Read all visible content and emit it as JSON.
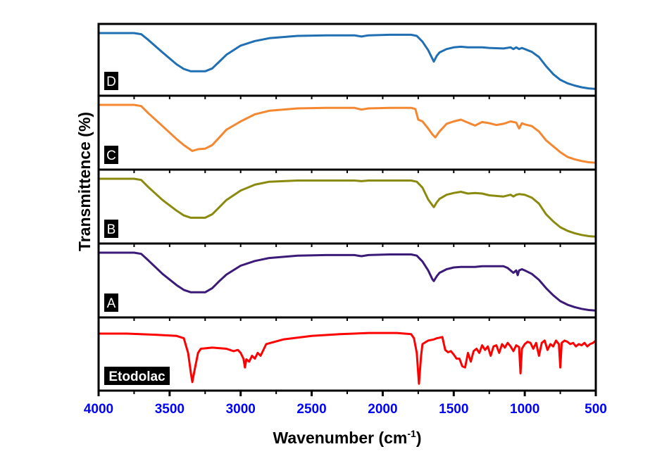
{
  "chart_data": {
    "type": "line",
    "title": "",
    "xlabel": "Wavenumber (cm",
    "xlabel_sup": "-1",
    "xlabel_close": ")",
    "ylabel": "Transmittence (%)",
    "xlim": [
      4000,
      500
    ],
    "x_ticks": [
      "4000",
      "3500",
      "3000",
      "2500",
      "2000",
      "1500",
      "1000",
      "500"
    ],
    "x_tick_values": [
      4000,
      3500,
      3000,
      2500,
      2000,
      1500,
      1000,
      500
    ],
    "x_minor_tick_values": [
      3750,
      3250,
      2750,
      2250,
      1750,
      1250,
      750
    ],
    "ylim": [
      0,
      100
    ],
    "grid": false,
    "legend": "none",
    "series": [
      {
        "name": "D",
        "color": "#1f6fb2",
        "points": [
          [
            4000,
            100
          ],
          [
            3750,
            100
          ],
          [
            3700,
            98
          ],
          [
            3650,
            88
          ],
          [
            3550,
            66
          ],
          [
            3450,
            45
          ],
          [
            3400,
            37
          ],
          [
            3350,
            33
          ],
          [
            3250,
            33
          ],
          [
            3200,
            38
          ],
          [
            3150,
            50
          ],
          [
            3100,
            62
          ],
          [
            3000,
            78
          ],
          [
            2900,
            86
          ],
          [
            2800,
            91
          ],
          [
            2600,
            95
          ],
          [
            2400,
            96
          ],
          [
            2200,
            96
          ],
          [
            2150,
            94
          ],
          [
            2100,
            96
          ],
          [
            1950,
            97
          ],
          [
            1800,
            97
          ],
          [
            1760,
            95
          ],
          [
            1720,
            85
          ],
          [
            1680,
            70
          ],
          [
            1650,
            55
          ],
          [
            1640,
            50
          ],
          [
            1620,
            60
          ],
          [
            1600,
            66
          ],
          [
            1550,
            72
          ],
          [
            1500,
            75
          ],
          [
            1450,
            76
          ],
          [
            1400,
            75
          ],
          [
            1350,
            75
          ],
          [
            1300,
            75
          ],
          [
            1250,
            74
          ],
          [
            1150,
            73
          ],
          [
            1100,
            75
          ],
          [
            1080,
            72
          ],
          [
            1060,
            75
          ],
          [
            1040,
            72
          ],
          [
            1020,
            74
          ],
          [
            1000,
            72
          ],
          [
            950,
            67
          ],
          [
            900,
            58
          ],
          [
            850,
            42
          ],
          [
            800,
            28
          ],
          [
            750,
            18
          ],
          [
            700,
            12
          ],
          [
            650,
            8
          ],
          [
            600,
            5
          ],
          [
            550,
            3
          ],
          [
            500,
            2
          ]
        ]
      },
      {
        "name": "C",
        "color": "#f4872f",
        "points": [
          [
            4000,
            100
          ],
          [
            3750,
            100
          ],
          [
            3700,
            98
          ],
          [
            3650,
            86
          ],
          [
            3550,
            64
          ],
          [
            3450,
            42
          ],
          [
            3400,
            32
          ],
          [
            3340,
            22
          ],
          [
            3300,
            25
          ],
          [
            3250,
            26
          ],
          [
            3200,
            32
          ],
          [
            3150,
            45
          ],
          [
            3100,
            58
          ],
          [
            3000,
            72
          ],
          [
            2900,
            84
          ],
          [
            2800,
            90
          ],
          [
            2600,
            94
          ],
          [
            2400,
            95
          ],
          [
            2200,
            95
          ],
          [
            2150,
            92
          ],
          [
            2100,
            94
          ],
          [
            1950,
            95
          ],
          [
            1800,
            95
          ],
          [
            1770,
            93
          ],
          [
            1750,
            75
          ],
          [
            1720,
            72
          ],
          [
            1680,
            60
          ],
          [
            1650,
            50
          ],
          [
            1630,
            45
          ],
          [
            1600,
            55
          ],
          [
            1550,
            68
          ],
          [
            1500,
            72
          ],
          [
            1450,
            75
          ],
          [
            1400,
            70
          ],
          [
            1350,
            65
          ],
          [
            1300,
            71
          ],
          [
            1250,
            69
          ],
          [
            1200,
            66
          ],
          [
            1150,
            68
          ],
          [
            1100,
            72
          ],
          [
            1060,
            70
          ],
          [
            1040,
            60
          ],
          [
            1020,
            69
          ],
          [
            1000,
            67
          ],
          [
            950,
            64
          ],
          [
            900,
            55
          ],
          [
            850,
            40
          ],
          [
            800,
            30
          ],
          [
            760,
            22
          ],
          [
            750,
            20
          ],
          [
            700,
            12
          ],
          [
            650,
            8
          ],
          [
            600,
            5
          ],
          [
            550,
            3
          ],
          [
            500,
            2
          ]
        ]
      },
      {
        "name": "B",
        "color": "#8a8a0e",
        "points": [
          [
            4000,
            100
          ],
          [
            3750,
            100
          ],
          [
            3700,
            98
          ],
          [
            3650,
            86
          ],
          [
            3550,
            64
          ],
          [
            3450,
            46
          ],
          [
            3400,
            38
          ],
          [
            3350,
            34
          ],
          [
            3250,
            34
          ],
          [
            3200,
            40
          ],
          [
            3150,
            52
          ],
          [
            3100,
            64
          ],
          [
            3000,
            80
          ],
          [
            2900,
            90
          ],
          [
            2800,
            95
          ],
          [
            2600,
            97
          ],
          [
            2400,
            97
          ],
          [
            2200,
            97
          ],
          [
            2150,
            96
          ],
          [
            2100,
            97
          ],
          [
            1950,
            97
          ],
          [
            1800,
            97
          ],
          [
            1760,
            95
          ],
          [
            1720,
            85
          ],
          [
            1680,
            65
          ],
          [
            1650,
            55
          ],
          [
            1640,
            52
          ],
          [
            1620,
            60
          ],
          [
            1600,
            66
          ],
          [
            1550,
            73
          ],
          [
            1500,
            76
          ],
          [
            1450,
            78
          ],
          [
            1400,
            75
          ],
          [
            1350,
            76
          ],
          [
            1300,
            75
          ],
          [
            1250,
            72
          ],
          [
            1150,
            70
          ],
          [
            1100,
            73
          ],
          [
            1080,
            70
          ],
          [
            1060,
            73
          ],
          [
            1040,
            74
          ],
          [
            1000,
            73
          ],
          [
            950,
            68
          ],
          [
            900,
            58
          ],
          [
            850,
            40
          ],
          [
            800,
            28
          ],
          [
            750,
            18
          ],
          [
            700,
            12
          ],
          [
            650,
            8
          ],
          [
            600,
            5
          ],
          [
            550,
            3
          ],
          [
            500,
            2
          ]
        ]
      },
      {
        "name": "A",
        "color": "#3b1a78",
        "points": [
          [
            4000,
            100
          ],
          [
            3750,
            100
          ],
          [
            3700,
            98
          ],
          [
            3650,
            87
          ],
          [
            3550,
            64
          ],
          [
            3450,
            45
          ],
          [
            3400,
            37
          ],
          [
            3350,
            33
          ],
          [
            3250,
            33
          ],
          [
            3200,
            40
          ],
          [
            3150,
            52
          ],
          [
            3100,
            63
          ],
          [
            3000,
            78
          ],
          [
            2900,
            86
          ],
          [
            2800,
            91
          ],
          [
            2600,
            95
          ],
          [
            2400,
            96
          ],
          [
            2200,
            96
          ],
          [
            2150,
            94
          ],
          [
            2100,
            96
          ],
          [
            1950,
            97
          ],
          [
            1800,
            97
          ],
          [
            1760,
            95
          ],
          [
            1720,
            85
          ],
          [
            1680,
            70
          ],
          [
            1650,
            55
          ],
          [
            1640,
            52
          ],
          [
            1620,
            60
          ],
          [
            1600,
            66
          ],
          [
            1550,
            72
          ],
          [
            1500,
            75
          ],
          [
            1450,
            76
          ],
          [
            1400,
            76
          ],
          [
            1350,
            76
          ],
          [
            1300,
            77
          ],
          [
            1250,
            77
          ],
          [
            1150,
            77
          ],
          [
            1120,
            74
          ],
          [
            1080,
            66
          ],
          [
            1060,
            70
          ],
          [
            1050,
            62
          ],
          [
            1040,
            70
          ],
          [
            1020,
            72
          ],
          [
            1000,
            70
          ],
          [
            950,
            64
          ],
          [
            900,
            54
          ],
          [
            850,
            40
          ],
          [
            800,
            28
          ],
          [
            750,
            18
          ],
          [
            700,
            12
          ],
          [
            650,
            8
          ],
          [
            600,
            5
          ],
          [
            550,
            3
          ],
          [
            500,
            2
          ]
        ]
      },
      {
        "name": "Etodolac",
        "color": "#ff0000",
        "points": [
          [
            4000,
            88
          ],
          [
            3800,
            88
          ],
          [
            3600,
            86
          ],
          [
            3450,
            84
          ],
          [
            3400,
            80
          ],
          [
            3370,
            55
          ],
          [
            3350,
            20
          ],
          [
            3340,
            5
          ],
          [
            3325,
            25
          ],
          [
            3300,
            55
          ],
          [
            3280,
            62
          ],
          [
            3200,
            64
          ],
          [
            3100,
            62
          ],
          [
            3050,
            58
          ],
          [
            3020,
            60
          ],
          [
            3000,
            55
          ],
          [
            2980,
            45
          ],
          [
            2970,
            30
          ],
          [
            2960,
            44
          ],
          [
            2940,
            40
          ],
          [
            2920,
            50
          ],
          [
            2900,
            45
          ],
          [
            2880,
            55
          ],
          [
            2860,
            50
          ],
          [
            2820,
            70
          ],
          [
            2700,
            78
          ],
          [
            2500,
            84
          ],
          [
            2300,
            87
          ],
          [
            2100,
            89
          ],
          [
            1900,
            89
          ],
          [
            1800,
            87
          ],
          [
            1780,
            80
          ],
          [
            1760,
            55
          ],
          [
            1745,
            2
          ],
          [
            1730,
            50
          ],
          [
            1720,
            70
          ],
          [
            1700,
            73
          ],
          [
            1680,
            76
          ],
          [
            1640,
            78
          ],
          [
            1620,
            80
          ],
          [
            1600,
            81
          ],
          [
            1580,
            82
          ],
          [
            1560,
            60
          ],
          [
            1540,
            56
          ],
          [
            1520,
            58
          ],
          [
            1500,
            52
          ],
          [
            1480,
            45
          ],
          [
            1460,
            45
          ],
          [
            1440,
            32
          ],
          [
            1420,
            30
          ],
          [
            1400,
            55
          ],
          [
            1380,
            40
          ],
          [
            1360,
            58
          ],
          [
            1340,
            62
          ],
          [
            1320,
            55
          ],
          [
            1300,
            68
          ],
          [
            1280,
            60
          ],
          [
            1260,
            66
          ],
          [
            1240,
            50
          ],
          [
            1220,
            66
          ],
          [
            1200,
            68
          ],
          [
            1180,
            55
          ],
          [
            1160,
            70
          ],
          [
            1140,
            64
          ],
          [
            1120,
            72
          ],
          [
            1100,
            66
          ],
          [
            1080,
            58
          ],
          [
            1060,
            68
          ],
          [
            1040,
            65
          ],
          [
            1030,
            20
          ],
          [
            1020,
            62
          ],
          [
            1000,
            70
          ],
          [
            980,
            74
          ],
          [
            960,
            72
          ],
          [
            940,
            62
          ],
          [
            920,
            72
          ],
          [
            900,
            50
          ],
          [
            880,
            72
          ],
          [
            860,
            76
          ],
          [
            840,
            60
          ],
          [
            820,
            70
          ],
          [
            800,
            66
          ],
          [
            780,
            76
          ],
          [
            760,
            70
          ],
          [
            750,
            30
          ],
          [
            740,
            72
          ],
          [
            720,
            76
          ],
          [
            700,
            74
          ],
          [
            680,
            70
          ],
          [
            660,
            72
          ],
          [
            640,
            66
          ],
          [
            620,
            70
          ],
          [
            600,
            68
          ],
          [
            580,
            72
          ],
          [
            560,
            66
          ],
          [
            540,
            70
          ],
          [
            520,
            72
          ],
          [
            500,
            76
          ]
        ]
      }
    ],
    "panel_labels": [
      "D",
      "C",
      "B",
      "A",
      "Etodolac"
    ]
  }
}
